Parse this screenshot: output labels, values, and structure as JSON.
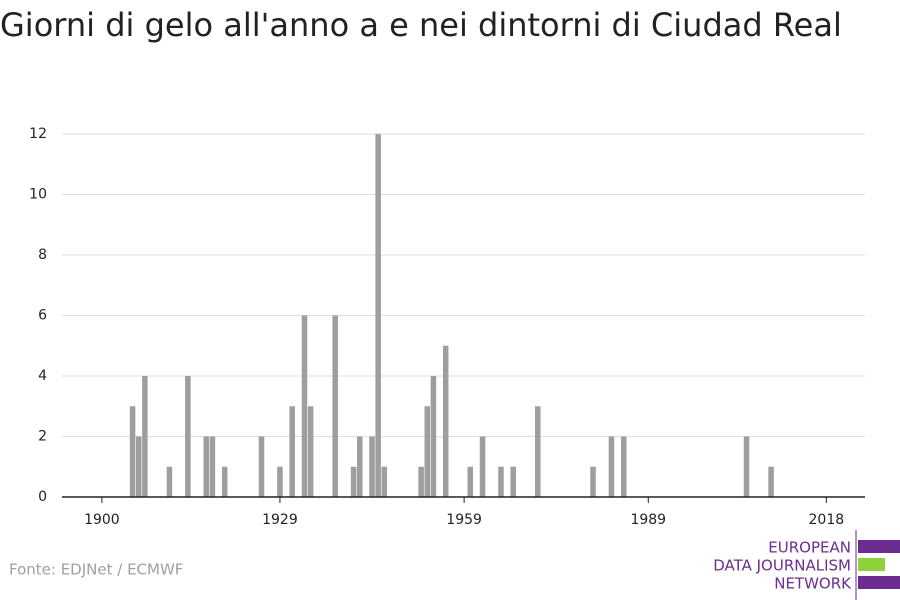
{
  "chart_data": {
    "type": "bar",
    "title": "Giorni di gelo all'anno a e nei dintorni di Ciudad Real",
    "source": "Fonte: EDJNet / ECMWF",
    "x": [
      1905,
      1906,
      1907,
      1911,
      1914,
      1917,
      1918,
      1920,
      1926,
      1929,
      1931,
      1933,
      1934,
      1938,
      1941,
      1942,
      1944,
      1945,
      1946,
      1952,
      1953,
      1954,
      1956,
      1960,
      1962,
      1965,
      1967,
      1971,
      1980,
      1983,
      1985,
      2005,
      2009
    ],
    "values": [
      3,
      2,
      4,
      1,
      4,
      2,
      2,
      1,
      2,
      1,
      3,
      6,
      3,
      6,
      1,
      2,
      2,
      12,
      1,
      1,
      3,
      4,
      5,
      1,
      2,
      1,
      1,
      3,
      1,
      2,
      2,
      2,
      1
    ],
    "color": "#9e9e9e",
    "xlim": [
      1893.5,
      2024.3
    ],
    "xticks": [
      1900,
      1929,
      1959,
      1989,
      2018
    ],
    "ylim": [
      0,
      12
    ],
    "yticks": [
      0,
      2,
      4,
      6,
      8,
      10,
      12
    ],
    "grid": true
  },
  "logo": {
    "lines": [
      "EUROPEAN",
      "DATA JOURNALISM",
      "NETWORK"
    ]
  }
}
